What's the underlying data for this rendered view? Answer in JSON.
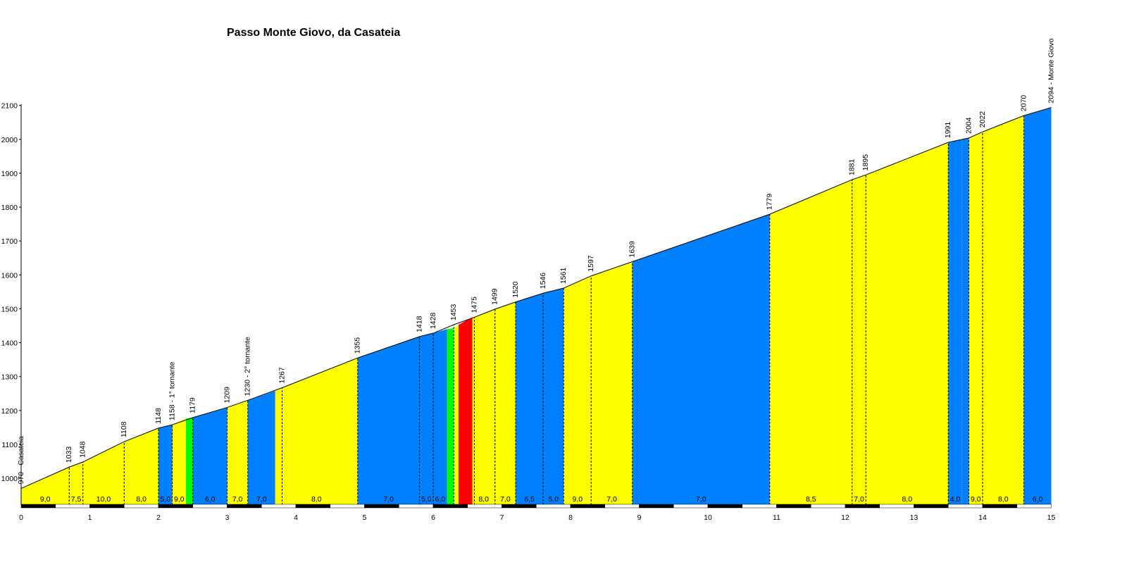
{
  "chart_data": {
    "type": "area",
    "title": "Passo Monte Giovo, da Casateia",
    "xlabel": "",
    "ylabel": "",
    "xlim": [
      0,
      15
    ],
    "ylim": [
      920,
      2100
    ],
    "x_ticks": [
      "0",
      "1",
      "2",
      "3",
      "4",
      "5",
      "6",
      "7",
      "8",
      "9",
      "10",
      "11",
      "12",
      "13",
      "14",
      "15"
    ],
    "y_ticks": [
      "1000",
      "1100",
      "1200",
      "1300",
      "1400",
      "1500",
      "1600",
      "1700",
      "1800",
      "1900",
      "2000",
      "2100"
    ],
    "points": [
      {
        "x": 0.0,
        "y": 970,
        "label": "970 - Casateia"
      },
      {
        "x": 0.7,
        "y": 1033,
        "label": "1033"
      },
      {
        "x": 0.9,
        "y": 1048,
        "label": "1048"
      },
      {
        "x": 1.5,
        "y": 1108,
        "label": "1108"
      },
      {
        "x": 2.0,
        "y": 1148,
        "label": "1148"
      },
      {
        "x": 2.2,
        "y": 1158,
        "label": "1158 - 1° tornante"
      },
      {
        "x": 2.5,
        "y": 1179,
        "label": "1179"
      },
      {
        "x": 3.0,
        "y": 1209,
        "label": "1209"
      },
      {
        "x": 3.3,
        "y": 1230,
        "label": "1230 - 2° tornante"
      },
      {
        "x": 3.8,
        "y": 1267,
        "label": "1267"
      },
      {
        "x": 4.9,
        "y": 1355,
        "label": "1355"
      },
      {
        "x": 5.8,
        "y": 1418,
        "label": "1418"
      },
      {
        "x": 6.0,
        "y": 1428,
        "label": "1428"
      },
      {
        "x": 6.3,
        "y": 1453,
        "label": "1453"
      },
      {
        "x": 6.6,
        "y": 1475,
        "label": "1475"
      },
      {
        "x": 6.9,
        "y": 1499,
        "label": "1499"
      },
      {
        "x": 7.2,
        "y": 1520,
        "label": "1520"
      },
      {
        "x": 7.6,
        "y": 1546,
        "label": "1546"
      },
      {
        "x": 7.9,
        "y": 1561,
        "label": "1561"
      },
      {
        "x": 8.3,
        "y": 1597,
        "label": "1597"
      },
      {
        "x": 8.9,
        "y": 1639,
        "label": "1639"
      },
      {
        "x": 10.9,
        "y": 1779,
        "label": "1779"
      },
      {
        "x": 12.1,
        "y": 1881,
        "label": "1881"
      },
      {
        "x": 12.3,
        "y": 1895,
        "label": "1895"
      },
      {
        "x": 13.5,
        "y": 1991,
        "label": "1991"
      },
      {
        "x": 13.8,
        "y": 2004,
        "label": "2004"
      },
      {
        "x": 14.0,
        "y": 2022,
        "label": "2022"
      },
      {
        "x": 14.6,
        "y": 2070,
        "label": "2070"
      },
      {
        "x": 15.0,
        "y": 2094,
        "label": "2094 - Monte Giovo"
      }
    ],
    "segments": [
      {
        "x0": 0.0,
        "x1": 0.7,
        "grade": "9,0",
        "fill": "#ffff00",
        "y0": 970,
        "y1": 1033
      },
      {
        "x0": 0.7,
        "x1": 0.9,
        "grade": "7,5",
        "fill": "#ffff00",
        "y0": 1033,
        "y1": 1048
      },
      {
        "x0": 0.9,
        "x1": 1.5,
        "grade": "10,0",
        "fill": "#ffff00",
        "y0": 1048,
        "y1": 1108
      },
      {
        "x0": 1.5,
        "x1": 2.0,
        "grade": "8,0",
        "fill": "#ffff00",
        "y0": 1108,
        "y1": 1148
      },
      {
        "x0": 2.0,
        "x1": 2.2,
        "grade": "5,0",
        "fill": "#0080ff",
        "y0": 1148,
        "y1": 1158
      },
      {
        "x0": 2.2,
        "x1": 2.4,
        "grade": "9,0",
        "fill": "#ffff00",
        "y0": 1158,
        "y1": 1176
      },
      {
        "x0": 2.4,
        "x1": 2.5,
        "grade": "",
        "fill": "#00ff00",
        "y0": 1176,
        "y1": 1179
      },
      {
        "x0": 2.5,
        "x1": 3.0,
        "grade": "6,0",
        "fill": "#0080ff",
        "y0": 1179,
        "y1": 1209
      },
      {
        "x0": 3.0,
        "x1": 3.3,
        "grade": "7,0",
        "fill": "#ffff00",
        "y0": 1209,
        "y1": 1230
      },
      {
        "x0": 3.3,
        "x1": 3.7,
        "grade": "7,0",
        "fill": "#0080ff",
        "y0": 1230,
        "y1": 1258
      },
      {
        "x0": 3.7,
        "x1": 4.9,
        "grade": "8,0",
        "fill": "#ffff00",
        "y0": 1258,
        "y1": 1355
      },
      {
        "x0": 4.9,
        "x1": 5.8,
        "grade": "7,0",
        "fill": "#0080ff",
        "y0": 1355,
        "y1": 1418
      },
      {
        "x0": 5.8,
        "x1": 6.0,
        "grade": "5,0",
        "fill": "#0080ff",
        "y0": 1418,
        "y1": 1428
      },
      {
        "x0": 6.0,
        "x1": 6.2,
        "grade": "6,0",
        "fill": "#0080ff",
        "y0": 1428,
        "y1": 1440
      },
      {
        "x0": 6.2,
        "x1": 6.3,
        "grade": "",
        "fill": "#00ff00",
        "y0": 1440,
        "y1": 1443
      },
      {
        "x0": 6.3,
        "x1": 6.37,
        "grade": "",
        "fill": "#ffff00",
        "y0": 1443,
        "y1": 1453
      },
      {
        "x0": 6.37,
        "x1": 6.57,
        "grade": "",
        "fill": "#ff0000",
        "y0": 1453,
        "y1": 1475
      },
      {
        "x0": 6.57,
        "x1": 6.9,
        "grade": "8,0",
        "fill": "#ffff00",
        "y0": 1475,
        "y1": 1499
      },
      {
        "x0": 6.9,
        "x1": 7.2,
        "grade": "7,0",
        "fill": "#ffff00",
        "y0": 1499,
        "y1": 1520
      },
      {
        "x0": 7.2,
        "x1": 7.6,
        "grade": "6,5",
        "fill": "#0080ff",
        "y0": 1520,
        "y1": 1546
      },
      {
        "x0": 7.6,
        "x1": 7.9,
        "grade": "5,0",
        "fill": "#0080ff",
        "y0": 1546,
        "y1": 1561
      },
      {
        "x0": 7.9,
        "x1": 8.3,
        "grade": "9,0",
        "fill": "#ffff00",
        "y0": 1561,
        "y1": 1597
      },
      {
        "x0": 8.3,
        "x1": 8.9,
        "grade": "7,0",
        "fill": "#ffff00",
        "y0": 1597,
        "y1": 1639
      },
      {
        "x0": 8.9,
        "x1": 10.9,
        "grade": "7,0",
        "fill": "#0080ff",
        "y0": 1639,
        "y1": 1779
      },
      {
        "x0": 10.9,
        "x1": 12.1,
        "grade": "8,5",
        "fill": "#ffff00",
        "y0": 1779,
        "y1": 1881
      },
      {
        "x0": 12.1,
        "x1": 12.3,
        "grade": "7,0",
        "fill": "#ffff00",
        "y0": 1881,
        "y1": 1895
      },
      {
        "x0": 12.3,
        "x1": 13.5,
        "grade": "8,0",
        "fill": "#ffff00",
        "y0": 1895,
        "y1": 1991
      },
      {
        "x0": 13.5,
        "x1": 13.7,
        "grade": "4,0",
        "fill": "#0080ff",
        "y0": 1991,
        "y1": 1999
      },
      {
        "x0": 13.7,
        "x1": 13.8,
        "grade": "",
        "fill": "#0080ff",
        "y0": 1999,
        "y1": 2004
      },
      {
        "x0": 13.8,
        "x1": 14.0,
        "grade": "9,0",
        "fill": "#ffff00",
        "y0": 2004,
        "y1": 2022
      },
      {
        "x0": 14.0,
        "x1": 14.6,
        "grade": "8,0",
        "fill": "#ffff00",
        "y0": 2022,
        "y1": 2070
      },
      {
        "x0": 14.6,
        "x1": 15.0,
        "grade": "6,0",
        "fill": "#0080ff",
        "y0": 2070,
        "y1": 2094
      }
    ],
    "grid": false,
    "legend": "none"
  }
}
